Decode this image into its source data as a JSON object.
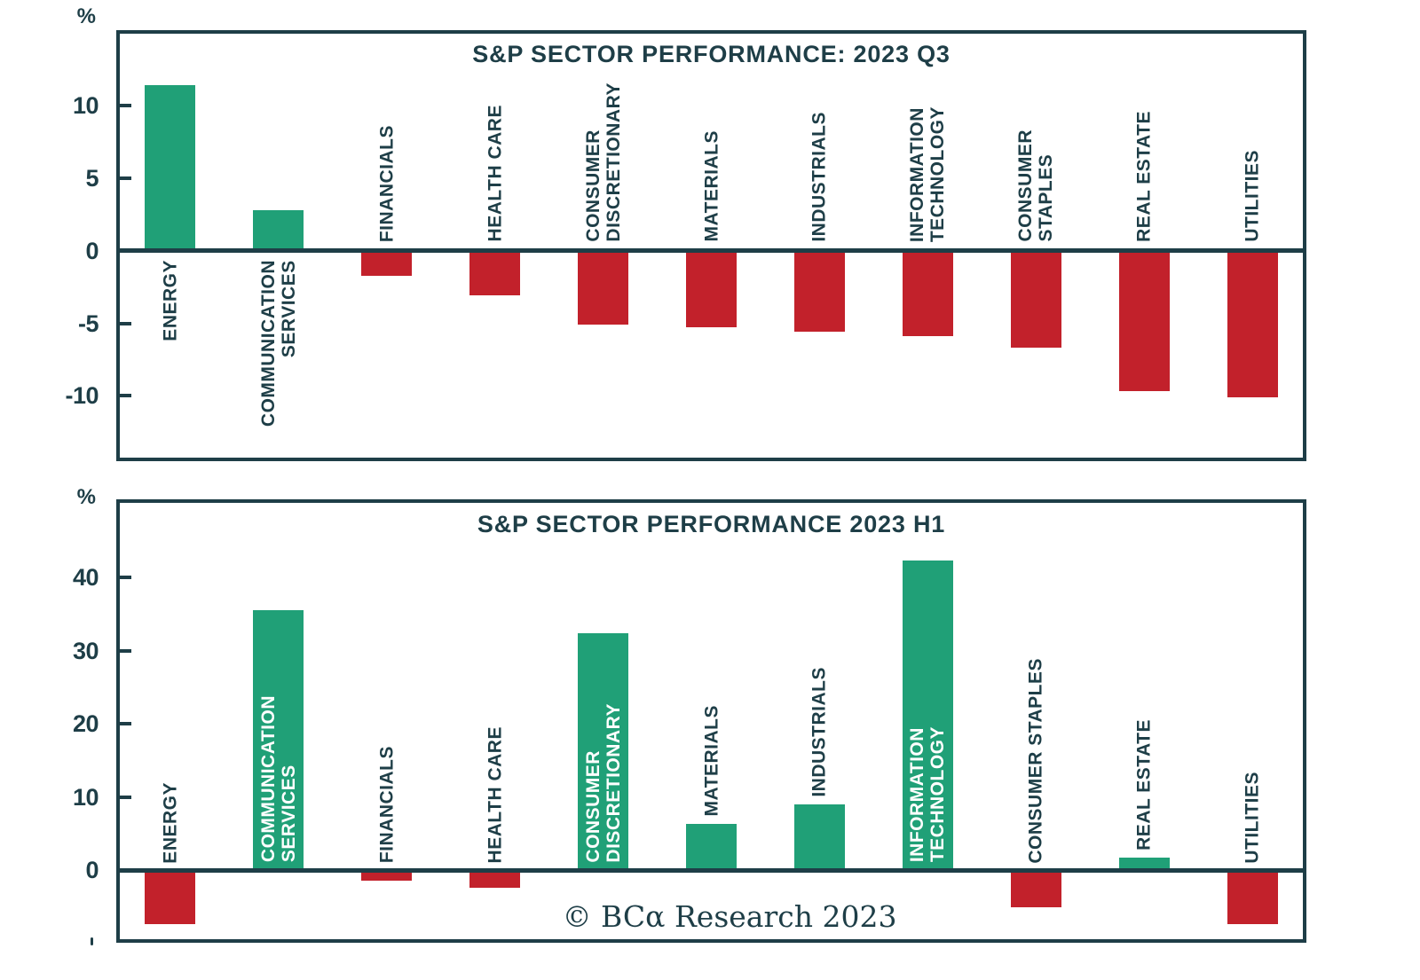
{
  "watermark": {
    "text": "© BCα Research 2023"
  },
  "colors": {
    "background": "#ffffff",
    "positive_bar": "#20a077",
    "negative_bar": "#c2212b",
    "frame_and_text": "#1e3e47",
    "label_on_bar": "#ffffff"
  },
  "chart_data": [
    {
      "type": "bar",
      "title": "S&P SECTOR PERFORMANCE: 2023 Q3",
      "unit_label": "%",
      "categories": [
        "ENERGY",
        "COMMUNICATION\nSERVICES",
        "FINANCIALS",
        "HEALTH CARE",
        "CONSUMER\nDISCRETIONARY",
        "MATERIALS",
        "INDUSTRIALS",
        "INFORMATION\nTECHNOLOGY",
        "CONSUMER\nSTAPLES",
        "REAL ESTATE",
        "UTILITIES"
      ],
      "values": [
        11.4,
        2.8,
        -1.7,
        -3.1,
        -5.1,
        -5.3,
        -5.6,
        -5.9,
        -6.7,
        -9.7,
        -10.1
      ],
      "yticks": [
        10,
        5,
        0,
        -5,
        -10
      ],
      "ylim": [
        -14.5,
        15.2
      ],
      "xlabel": "",
      "ylabel": "%",
      "grid": false,
      "legend": "none",
      "bar_color_rule": "green for positive values, red for negative values"
    },
    {
      "type": "bar",
      "title": "S&P SECTOR PERFORMANCE 2023 H1",
      "unit_label": "%",
      "categories": [
        "ENERGY",
        "COMMUNICATION\nSERVICES",
        "FINANCIALS",
        "HEALTH CARE",
        "CONSUMER\nDISCRETIONARY",
        "MATERIALS",
        "INDUSTRIALS",
        "INFORMATION\nTECHNOLOGY",
        "CONSUMER STAPLES",
        "REAL ESTATE",
        "UTILITIES"
      ],
      "values": [
        -7.4,
        35.6,
        -1.4,
        -2.4,
        32.4,
        6.4,
        9.0,
        42.3,
        -5.1,
        1.7,
        -7.3
      ],
      "yticks": [
        40,
        30,
        20,
        10,
        0
      ],
      "ylim": [
        -9.9,
        50.7
      ],
      "xlabel": "",
      "ylabel": "%",
      "grid": false,
      "legend": "none",
      "bar_color_rule": "green for positive values, red for negative values"
    }
  ]
}
